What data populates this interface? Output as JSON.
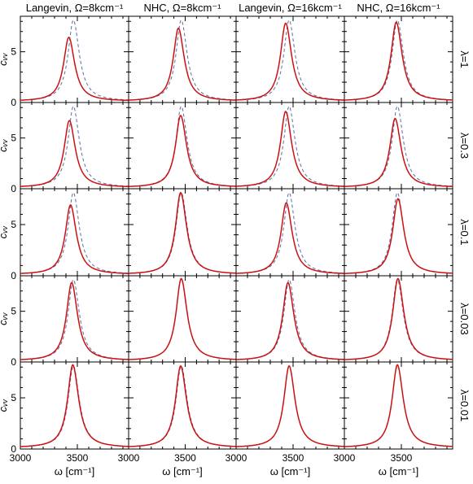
{
  "chart_data": {
    "type": "line",
    "grid": false,
    "x_unit_label": "ω [cm⁻¹]",
    "y_axis_label": "cᵥᵥ",
    "xlim": [
      3000,
      3950
    ],
    "ylim": [
      0,
      8.5
    ],
    "x_ticks": [
      "3000",
      "3500"
    ],
    "y_ticks": [
      "0",
      "5"
    ],
    "columns": [
      {
        "title": "Langevin, Ω=8kcm⁻¹"
      },
      {
        "title": "NHC, Ω=8kcm⁻¹"
      },
      {
        "title": "Langevin, Ω=16kcm⁻¹"
      },
      {
        "title": "NHC, Ω=16kcm⁻¹"
      }
    ],
    "rows": [
      {
        "label": "λ=1"
      },
      {
        "label": "λ=0.3"
      },
      {
        "label": "λ=0.1"
      },
      {
        "label": "λ=0.03"
      },
      {
        "label": "λ=0.01"
      }
    ],
    "reference_curve": {
      "style": "dashed",
      "color": "#5a6fa8",
      "peak_x": 3465,
      "peak_y": 8.0
    },
    "simulated_curve": {
      "style": "solid",
      "color": "#cc1111"
    },
    "panels": [
      [
        {
          "peak_x": 3425,
          "peak_y": 6.3
        },
        {
          "peak_x": 3440,
          "peak_y": 7.2
        },
        {
          "peak_x": 3435,
          "peak_y": 7.7
        },
        {
          "peak_x": 3455,
          "peak_y": 7.8
        }
      ],
      [
        {
          "peak_x": 3430,
          "peak_y": 6.6
        },
        {
          "peak_x": 3460,
          "peak_y": 7.1
        },
        {
          "peak_x": 3435,
          "peak_y": 7.5
        },
        {
          "peak_x": 3445,
          "peak_y": 6.8
        }
      ],
      [
        {
          "peak_x": 3440,
          "peak_y": 6.8
        },
        {
          "peak_x": 3460,
          "peak_y": 8.0
        },
        {
          "peak_x": 3440,
          "peak_y": 7.0
        },
        {
          "peak_x": 3470,
          "peak_y": 7.4
        }
      ],
      [
        {
          "peak_x": 3450,
          "peak_y": 7.7
        },
        {
          "peak_x": 3465,
          "peak_y": 8.1
        },
        {
          "peak_x": 3455,
          "peak_y": 7.7
        },
        {
          "peak_x": 3470,
          "peak_y": 8.1
        }
      ],
      [
        {
          "peak_x": 3460,
          "peak_y": 8.1
        },
        {
          "peak_x": 3460,
          "peak_y": 8.0
        },
        {
          "peak_x": 3465,
          "peak_y": 8.0
        },
        {
          "peak_x": 3465,
          "peak_y": 8.1
        }
      ]
    ]
  }
}
